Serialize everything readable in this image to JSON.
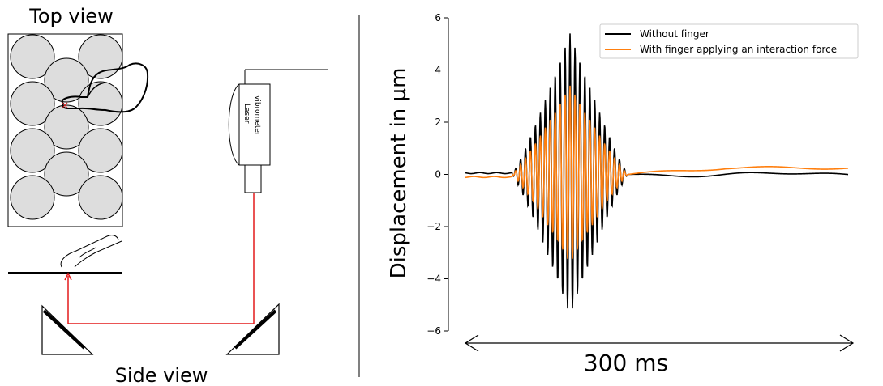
{
  "left_panel": {
    "top_view_label": "Top view",
    "side_view_label": "Side view",
    "device_label_line1": "Laser",
    "device_label_line2": "vibrometer",
    "touch_marker": "×"
  },
  "chart_data": {
    "type": "line",
    "xlabel": "",
    "ylabel": "Displacement in µm",
    "ylim": [
      -6,
      6
    ],
    "yticks": [
      6,
      4,
      2,
      0,
      -2,
      -4,
      -6
    ],
    "ytick_labels": [
      "6",
      "4",
      "2",
      "0",
      "−2",
      "−4",
      "−6"
    ],
    "time_span_label": "300 ms",
    "legend_position": "top-right",
    "grid": false,
    "series": [
      {
        "name": "Without finger",
        "color": "#000000",
        "envelope_peak": 5.4,
        "baseline_note": "near 0 before and after burst",
        "values_summary": {
          "burst_peak_max": 5.4,
          "burst_peak_min": -5.3
        }
      },
      {
        "name": "With finger applying an interaction force",
        "color": "#ff7f0e",
        "envelope_peak": 3.4,
        "values_summary": {
          "burst_peak_max": 3.4,
          "burst_peak_min": -3.4
        }
      }
    ]
  }
}
